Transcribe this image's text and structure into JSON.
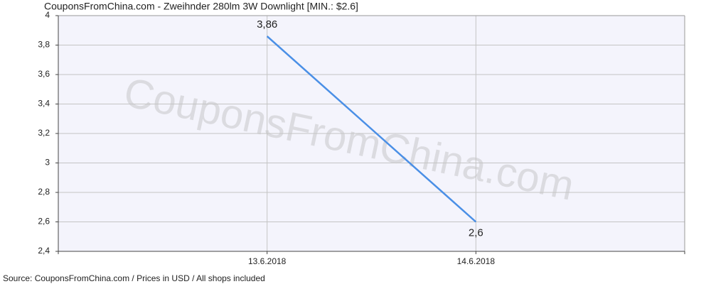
{
  "chart_data": {
    "type": "line",
    "title": "CouponsFromChina.com - Zweihnder 280lm 3W Downlight [MIN.: $2.6]",
    "watermark": "CouponsFromChina.com",
    "source": "Source: CouponsFromChina.com / Prices in USD / All shops included",
    "categories": [
      "13.6.2018",
      "14.6.2018"
    ],
    "series": [
      {
        "name": "Price",
        "color": "#4a8fe6",
        "values": [
          3.86,
          2.6
        ],
        "value_labels": [
          "3,86",
          "2,6"
        ]
      }
    ],
    "ylim": [
      2.4,
      4
    ],
    "yticks": [
      {
        "value": 2.4,
        "label": "2,4"
      },
      {
        "value": 2.6,
        "label": "2,6"
      },
      {
        "value": 2.8,
        "label": "2,8"
      },
      3,
      {
        "value": 3.2,
        "label": "3,2"
      },
      {
        "value": 3.4,
        "label": "3,4"
      },
      {
        "value": 3.6,
        "label": "3,6"
      },
      {
        "value": 3.8,
        "label": "3,8"
      },
      4
    ],
    "grid": true
  }
}
